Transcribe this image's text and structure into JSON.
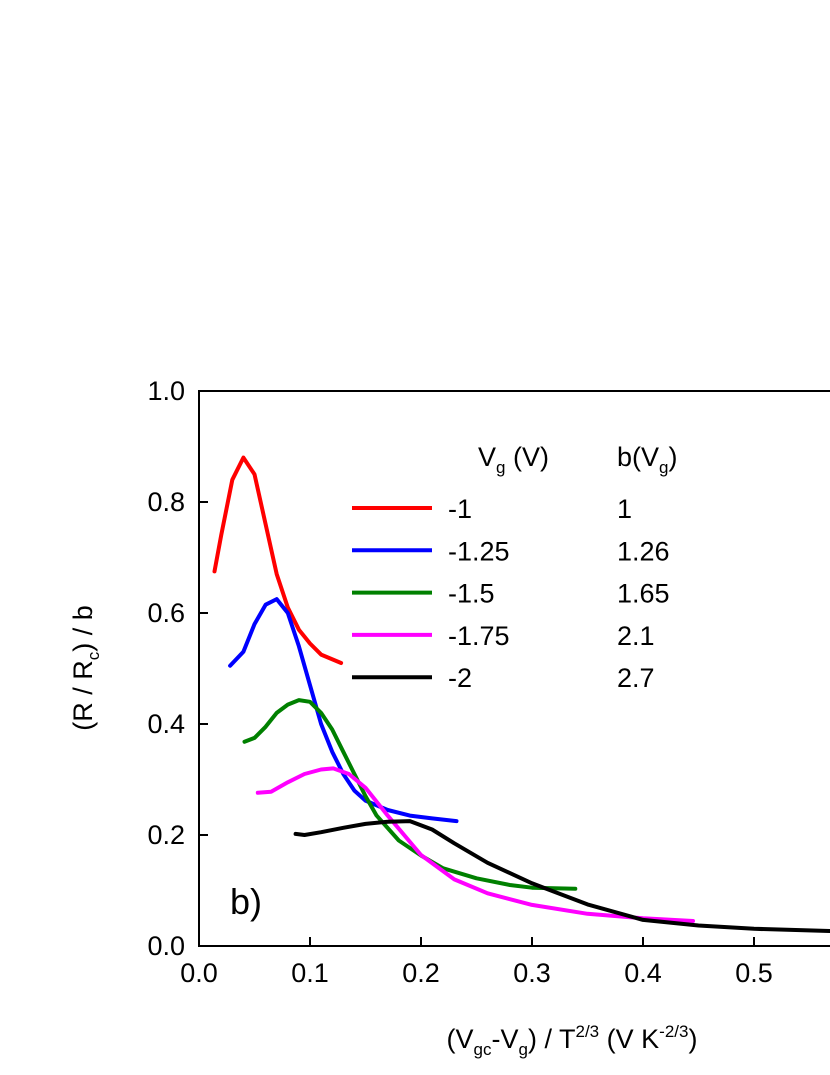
{
  "chart_data": {
    "type": "line",
    "x_label": [
      "(V",
      "gc",
      "-V",
      "g",
      ") / T",
      "2/3",
      " (V K",
      "-2/3",
      ")"
    ],
    "y_label": [
      "(R / R",
      "c",
      ") / b"
    ],
    "legend_headers": [
      [
        "V",
        "g",
        " (V)"
      ],
      [
        "b(V",
        "g",
        ")"
      ]
    ],
    "annotation": "b)",
    "xlim": [
      0,
      0.6
    ],
    "ylim": [
      0,
      1.0
    ],
    "xticks": [
      {
        "value": 0,
        "label": "0.0"
      },
      0.1,
      0.2,
      0.3,
      0.4,
      0.5
    ],
    "yticks": [
      {
        "value": 0,
        "label": "0.0"
      },
      0.2,
      0.4,
      0.6,
      0.8,
      {
        "value": 1,
        "label": "1.0"
      }
    ],
    "series": [
      {
        "name": "-1",
        "b": "1",
        "color": "#ff0000",
        "x": [
          0.014,
          0.02,
          0.03,
          0.04,
          0.05,
          0.06,
          0.07,
          0.08,
          0.09,
          0.1,
          0.11,
          0.128
        ],
        "values": [
          0.675,
          0.74,
          0.84,
          0.88,
          0.85,
          0.76,
          0.67,
          0.61,
          0.57,
          0.545,
          0.525,
          0.51
        ]
      },
      {
        "name": "-1.25",
        "b": "1.26",
        "color": "#0000ff",
        "x": [
          0.028,
          0.04,
          0.05,
          0.06,
          0.07,
          0.08,
          0.09,
          0.1,
          0.11,
          0.12,
          0.13,
          0.14,
          0.15,
          0.17,
          0.19,
          0.21,
          0.232
        ],
        "values": [
          0.505,
          0.53,
          0.58,
          0.615,
          0.625,
          0.6,
          0.54,
          0.47,
          0.4,
          0.35,
          0.31,
          0.28,
          0.262,
          0.245,
          0.235,
          0.23,
          0.225
        ]
      },
      {
        "name": "-1.5",
        "b": "1.65",
        "color": "#008000",
        "x": [
          0.041,
          0.05,
          0.06,
          0.07,
          0.08,
          0.09,
          0.1,
          0.11,
          0.12,
          0.13,
          0.14,
          0.15,
          0.16,
          0.18,
          0.2,
          0.22,
          0.25,
          0.28,
          0.3,
          0.339
        ],
        "values": [
          0.368,
          0.375,
          0.395,
          0.42,
          0.435,
          0.443,
          0.44,
          0.42,
          0.39,
          0.35,
          0.31,
          0.27,
          0.235,
          0.19,
          0.163,
          0.14,
          0.122,
          0.11,
          0.105,
          0.103
        ]
      },
      {
        "name": "-1.75",
        "b": "2.1",
        "color": "#ff00ff",
        "x": [
          0.053,
          0.065,
          0.08,
          0.095,
          0.11,
          0.121,
          0.135,
          0.15,
          0.17,
          0.2,
          0.23,
          0.26,
          0.3,
          0.35,
          0.4,
          0.445
        ],
        "values": [
          0.276,
          0.278,
          0.295,
          0.31,
          0.318,
          0.32,
          0.31,
          0.285,
          0.235,
          0.164,
          0.12,
          0.095,
          0.074,
          0.058,
          0.05,
          0.045
        ]
      },
      {
        "name": "-2",
        "b": "2.7",
        "color": "#000000",
        "x": [
          0.087,
          0.095,
          0.11,
          0.13,
          0.15,
          0.17,
          0.19,
          0.21,
          0.23,
          0.26,
          0.3,
          0.35,
          0.4,
          0.45,
          0.5,
          0.568
        ],
        "values": [
          0.202,
          0.2,
          0.205,
          0.213,
          0.22,
          0.224,
          0.225,
          0.21,
          0.185,
          0.15,
          0.113,
          0.075,
          0.047,
          0.037,
          0.031,
          0.027
        ]
      }
    ]
  }
}
